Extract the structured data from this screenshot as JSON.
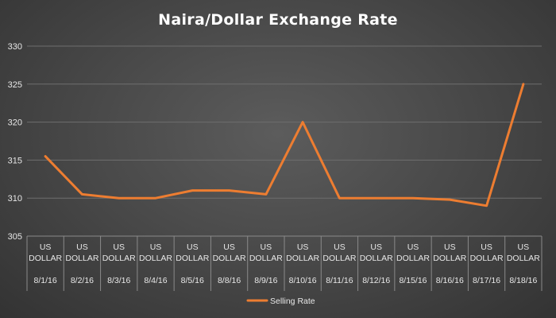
{
  "chart_data": {
    "type": "line",
    "title": "Naira/Dollar Exchange Rate",
    "xlabel": "",
    "ylabel": "",
    "ylim": [
      305,
      330
    ],
    "yticks": [
      305,
      310,
      315,
      320,
      325,
      330
    ],
    "grid": true,
    "legend_position": "bottom",
    "categories": [
      {
        "group": "US DOLLAR",
        "date": "8/1/16"
      },
      {
        "group": "US DOLLAR",
        "date": "8/2/16"
      },
      {
        "group": "US DOLLAR",
        "date": "8/3/16"
      },
      {
        "group": "US DOLLAR",
        "date": "8/4/16"
      },
      {
        "group": "US DOLLAR",
        "date": "8/5/16"
      },
      {
        "group": "US DOLLAR",
        "date": "8/8/16"
      },
      {
        "group": "US DOLLAR",
        "date": "8/9/16"
      },
      {
        "group": "US DOLLAR",
        "date": "8/10/16"
      },
      {
        "group": "US DOLLAR",
        "date": "8/11/16"
      },
      {
        "group": "US DOLLAR",
        "date": "8/12/16"
      },
      {
        "group": "US DOLLAR",
        "date": "8/15/16"
      },
      {
        "group": "US DOLLAR",
        "date": "8/16/16"
      },
      {
        "group": "US DOLLAR",
        "date": "8/17/16"
      },
      {
        "group": "US DOLLAR",
        "date": "8/18/16"
      }
    ],
    "series": [
      {
        "name": "Selling Rate",
        "color": "#ed7d31",
        "values": [
          315.5,
          310.5,
          310,
          310,
          311,
          311,
          310.5,
          320,
          310,
          310,
          310,
          309.8,
          309,
          325
        ]
      }
    ],
    "colors": {
      "gridline": "#6e6e6e",
      "axis": "#8a8a8a",
      "text": "#e8e8e8",
      "title": "#ffffff"
    }
  }
}
